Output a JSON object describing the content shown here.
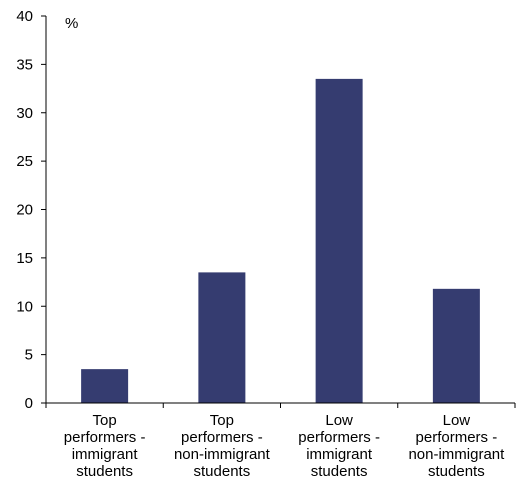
{
  "chart_data": {
    "type": "bar",
    "title": "",
    "xlabel": "",
    "ylabel": "%",
    "ylim": [
      0,
      40
    ],
    "yticks": [
      0,
      5,
      10,
      15,
      20,
      25,
      30,
      35,
      40
    ],
    "grid": false,
    "legend": "none",
    "categories": [
      [
        "Top",
        "performers -",
        "immigrant",
        "students"
      ],
      [
        "Top",
        "performers -",
        "non-immigrant",
        "students"
      ],
      [
        "Low",
        "performers -",
        "immigrant",
        "students"
      ],
      [
        "Low",
        "performers -",
        "non-immigrant",
        "students"
      ]
    ],
    "values": [
      3.5,
      13.5,
      33.5,
      11.8
    ],
    "bar_color": "#353C70"
  }
}
